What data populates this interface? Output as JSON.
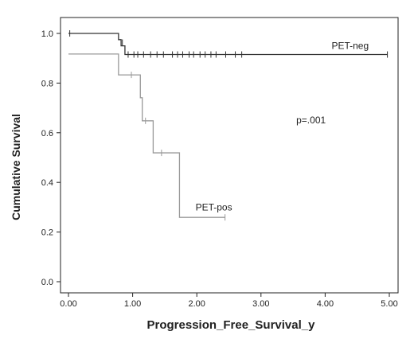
{
  "chart_data": {
    "type": "line",
    "xlabel": "Progression_Free_Survival_y",
    "ylabel": "Cumulative Survival",
    "xlim": [
      0,
      5
    ],
    "ylim": [
      0,
      1
    ],
    "x_ticks": [
      "0.00",
      "1.00",
      "2.00",
      "3.00",
      "4.00",
      "5.00"
    ],
    "y_ticks": [
      "0.0",
      "0.2",
      "0.4",
      "0.6",
      "0.8",
      "1.0"
    ],
    "grid": false,
    "annotations": [
      {
        "text": "p=.001",
        "x": 3.55,
        "y": 0.65
      }
    ],
    "series": [
      {
        "name": "PET-neg",
        "color": "#333333",
        "label_pos": {
          "x": 4.1,
          "y": 0.95
        },
        "steps": [
          [
            0,
            1.0
          ],
          [
            0.78,
            0.975
          ],
          [
            0.82,
            0.95
          ],
          [
            0.88,
            0.915
          ],
          [
            4.97,
            0.915
          ]
        ],
        "censored": [
          [
            0.02,
            1.0
          ],
          [
            0.84,
            0.963
          ],
          [
            0.93,
            0.915
          ],
          [
            1.02,
            0.915
          ],
          [
            1.08,
            0.915
          ],
          [
            1.17,
            0.915
          ],
          [
            1.28,
            0.915
          ],
          [
            1.38,
            0.915
          ],
          [
            1.48,
            0.915
          ],
          [
            1.62,
            0.915
          ],
          [
            1.7,
            0.915
          ],
          [
            1.78,
            0.915
          ],
          [
            1.88,
            0.915
          ],
          [
            1.95,
            0.915
          ],
          [
            2.05,
            0.915
          ],
          [
            2.13,
            0.915
          ],
          [
            2.22,
            0.915
          ],
          [
            2.3,
            0.915
          ],
          [
            2.45,
            0.915
          ],
          [
            2.6,
            0.915
          ],
          [
            2.7,
            0.915
          ],
          [
            4.97,
            0.915
          ]
        ]
      },
      {
        "name": "PET-pos",
        "color": "#999999",
        "label_pos": {
          "x": 1.98,
          "y": 0.3
        },
        "steps": [
          [
            0,
            0.917
          ],
          [
            0.78,
            0.833
          ],
          [
            1.12,
            0.741
          ],
          [
            1.15,
            0.648
          ],
          [
            1.32,
            0.519
          ],
          [
            1.73,
            0.259
          ],
          [
            2.44,
            0.259
          ]
        ],
        "censored": [
          [
            0.98,
            0.833
          ],
          [
            1.2,
            0.648
          ],
          [
            1.45,
            0.519
          ],
          [
            2.44,
            0.259
          ]
        ]
      }
    ]
  }
}
